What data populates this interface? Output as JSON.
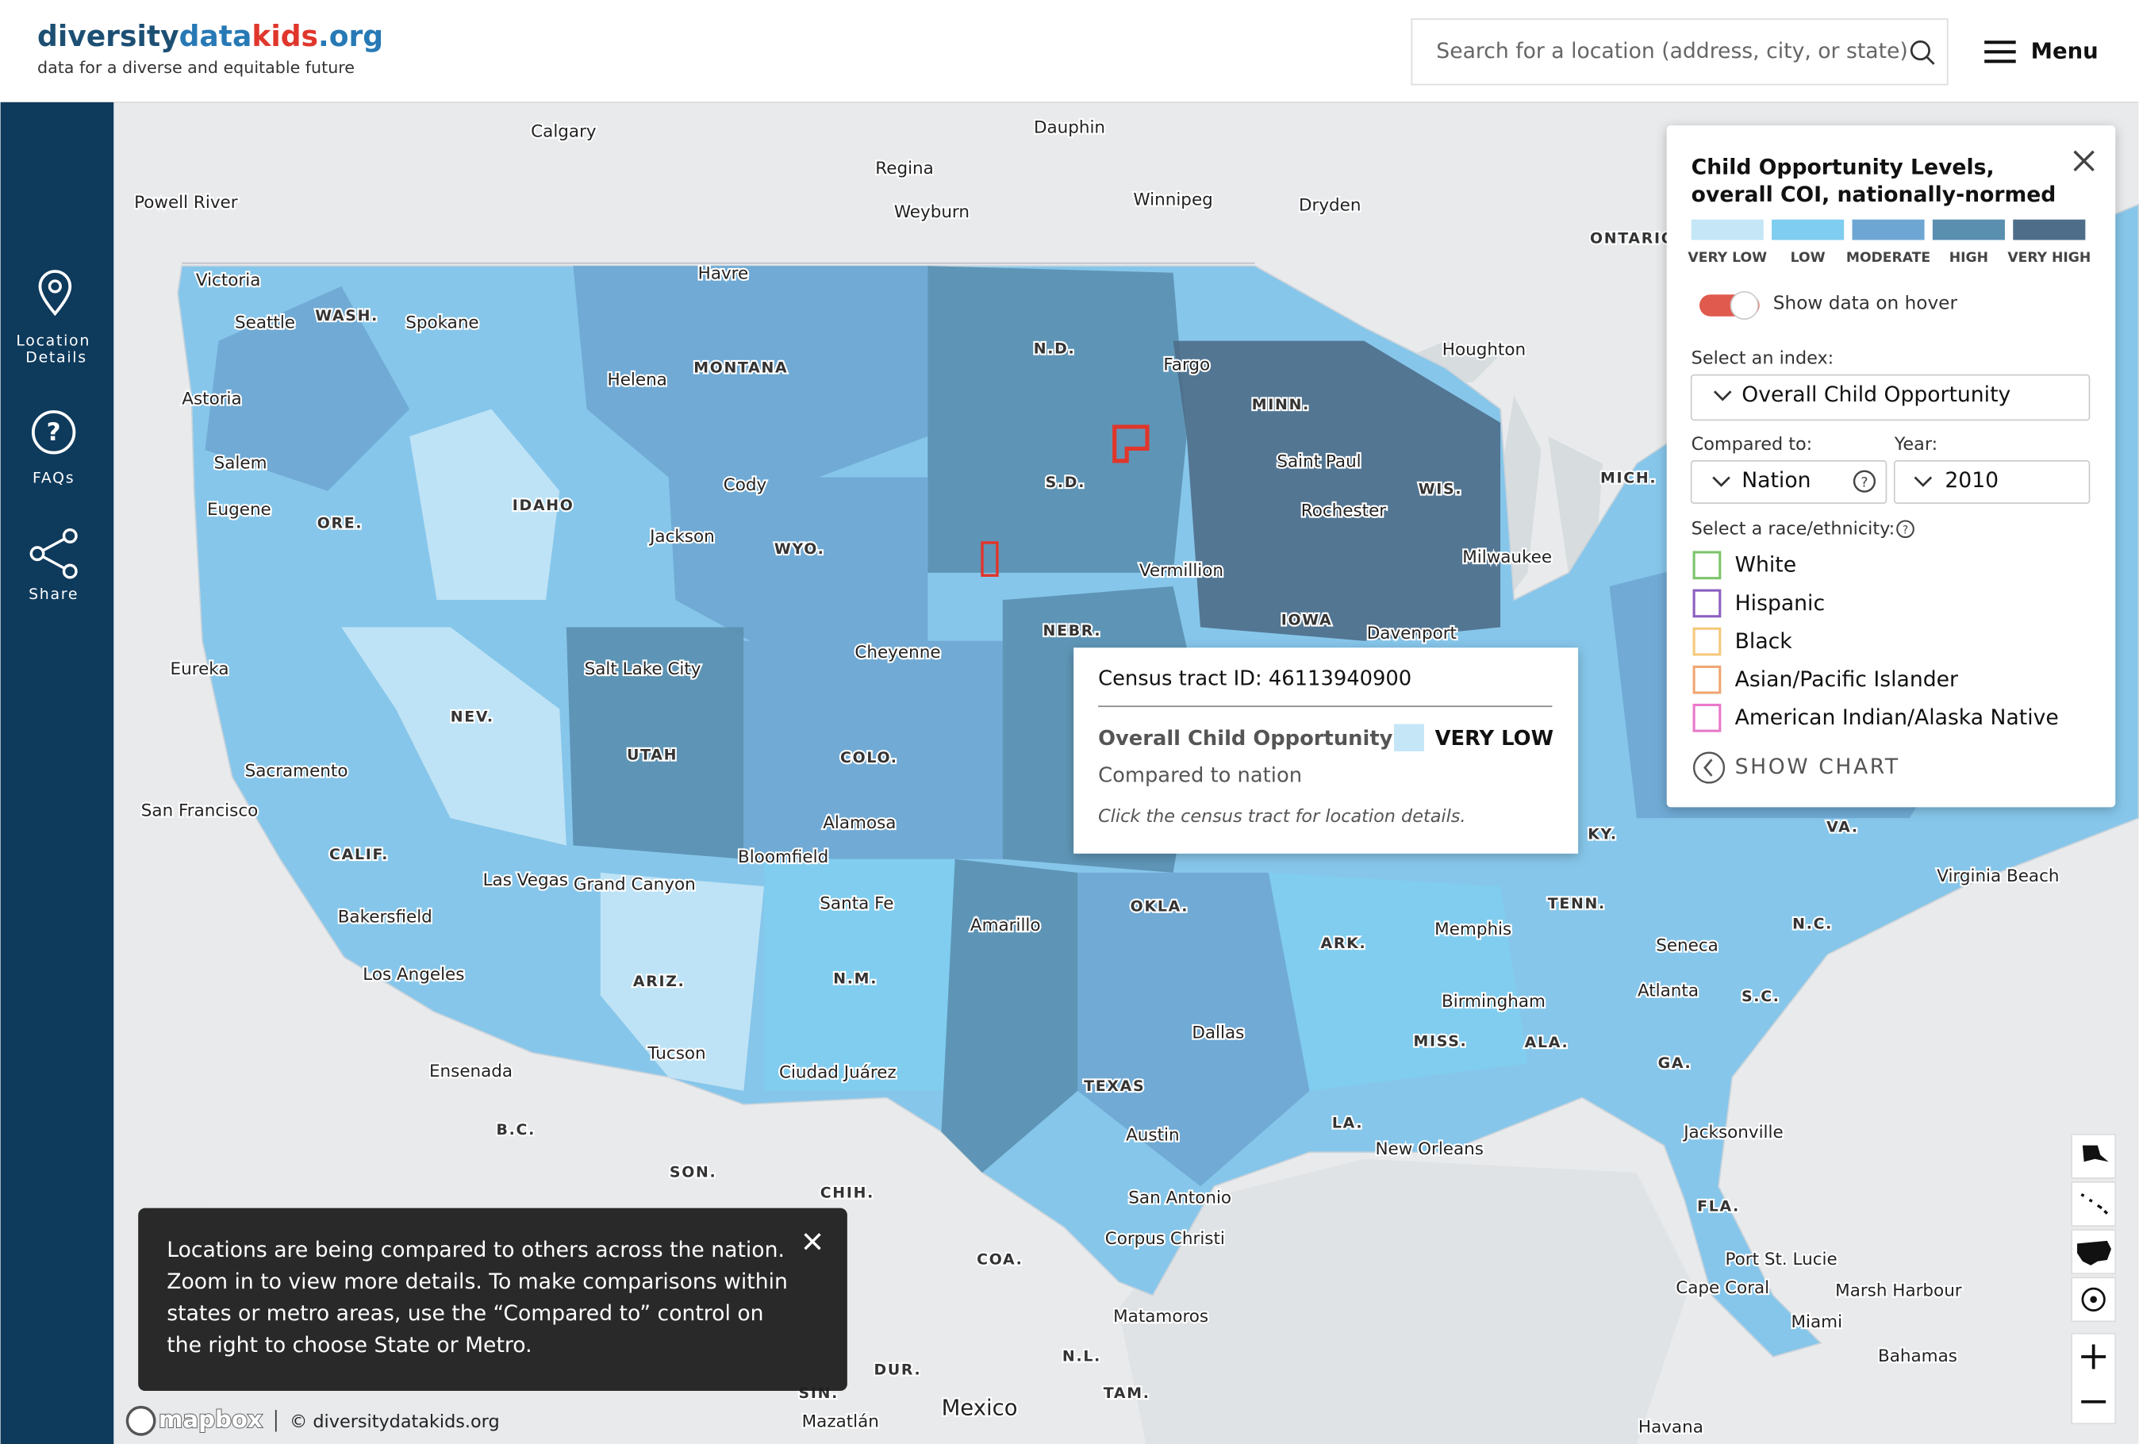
{
  "header": {
    "logo": [
      "diversity",
      "data",
      "kids",
      ".org"
    ],
    "tagline": "data for a diverse and equitable future",
    "search_placeholder": "Search for a location (address, city, or state)",
    "menu": "Menu"
  },
  "sidebar": {
    "items": [
      "Location Details",
      "FAQs",
      "Share"
    ]
  },
  "legend": {
    "title": "Child Opportunity Levels, overall COI, nationally-normed",
    "levels": [
      {
        "label": "VERY LOW",
        "color": "#c4e6f7"
      },
      {
        "label": "LOW",
        "color": "#7fcdf0"
      },
      {
        "label": "MODERATE",
        "color": "#6ea6d3"
      },
      {
        "label": "HIGH",
        "color": "#5a8fb0"
      },
      {
        "label": "VERY HIGH",
        "color": "#4e6d89"
      }
    ],
    "toggle_label": "Show data on hover",
    "index_label": "Select an index:",
    "index_value": "Overall Child Opportunity",
    "compared_label": "Compared to:",
    "compared_value": "Nation",
    "year_label": "Year:",
    "year_value": "2010",
    "race_label": "Select a race/ethnicity:",
    "races": [
      {
        "name": "White",
        "color": "#7cc46a"
      },
      {
        "name": "Hispanic",
        "color": "#8b5fbf"
      },
      {
        "name": "Black",
        "color": "#f5c97a"
      },
      {
        "name": "Asian/Pacific Islander",
        "color": "#f0a673"
      },
      {
        "name": "American Indian/Alaska Native",
        "color": "#e979c9"
      }
    ],
    "show_chart": "SHOW CHART"
  },
  "tooltip": {
    "tract": "Census tract ID: 46113940900",
    "index": "Overall Child Opportunity",
    "level": "VERY LOW",
    "compared": "Compared to nation",
    "hint": "Click the census tract for location details."
  },
  "notice": "Locations are being compared to others across the nation. Zoom in to view more details. To make comparisons within states or metro areas, use the “Compared to” control on the right to choose State or Metro.",
  "attribution": {
    "logo": "mapbox",
    "copyright": "© diversitydatakids.org"
  },
  "map_labels": [
    "Calgary",
    "Dauphin",
    "Regina",
    "Weyburn",
    "Winnipeg",
    "Dryden",
    "Powell River",
    "ONTARIO",
    "Victoria",
    "Seattle",
    "WASH.",
    "Havre",
    "Spokane",
    "N.D.",
    "Fargo",
    "Houghton",
    "Astoria",
    "Helena",
    "MONTANA",
    "MINN.",
    "Salem",
    "S.D.",
    "Saint Paul",
    "MICH.",
    "Cody",
    "WIS.",
    "Eugene",
    "ORE.",
    "IDAHO",
    "Rochester",
    "Jackson",
    "WYO.",
    "Milwaukee",
    "Vermillion",
    "IOWA",
    "Davenport",
    "NEBR.",
    "Cheyenne",
    "Eureka",
    "Salt Lake City",
    "NEV.",
    "UTAH",
    "COLO.",
    "Sacramento",
    "San Francisco",
    "Alamosa",
    "CALIF.",
    "Bloomfield",
    "Las Vegas",
    "Grand Canyon",
    "Santa Fe",
    "OKLA.",
    "Amarillo",
    "Bakersfield",
    "ARK.",
    "Memphis",
    "TENN.",
    "Virginia Beach",
    "N.C.",
    "Seneca",
    "Los Angeles",
    "ARIZ.",
    "N.M.",
    "Atlanta",
    "Birmingham",
    "S.C.",
    "Dallas",
    "MISS.",
    "ALA.",
    "Tucson",
    "Ciudad Juárez",
    "Ensenada",
    "GA.",
    "TEXAS",
    "LA.",
    "B.C.",
    "Jacksonville",
    "Austin",
    "New Orleans",
    "SON.",
    "CHIH.",
    "San Antonio",
    "FLA.",
    "Corpus Christi",
    "COA.",
    "Port St. Lucie",
    "Cape Coral",
    "Marsh Harbour",
    "Miami",
    "Matamoros",
    "Bahamas",
    "N.L.",
    "DUR.",
    "TAM.",
    "Mexico",
    "SIN.",
    "Mazatlán",
    "Havana",
    "KY.",
    "VA."
  ]
}
